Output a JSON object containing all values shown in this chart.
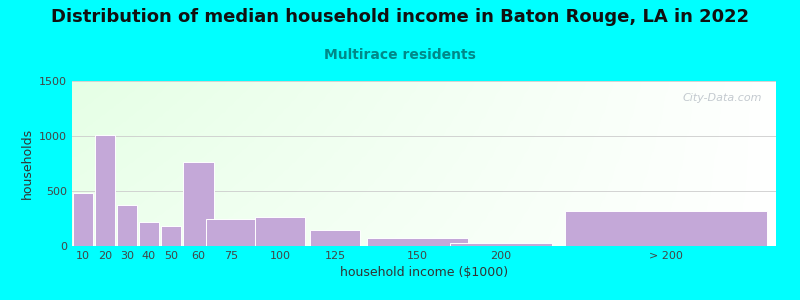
{
  "title": "Distribution of median household income in Baton Rouge, LA in 2022",
  "subtitle": "Multirace residents",
  "xlabel": "household income ($1000)",
  "ylabel": "households",
  "background_outer": "#00FFFF",
  "bar_color": "#C4A8D8",
  "bar_edge_color": "#FFFFFF",
  "ylim": [
    0,
    1500
  ],
  "yticks": [
    0,
    500,
    1000,
    1500
  ],
  "categories": [
    "10",
    "20",
    "30",
    "40",
    "50",
    "60",
    "75",
    "100",
    "125",
    "150",
    "200",
    "> 200"
  ],
  "values": [
    480,
    1005,
    370,
    215,
    185,
    765,
    250,
    265,
    150,
    75,
    30,
    320
  ],
  "widths": [
    10,
    10,
    10,
    10,
    10,
    15,
    25,
    25,
    25,
    50,
    50,
    100
  ],
  "lefts": [
    5,
    15,
    25,
    35,
    45,
    55,
    65,
    87,
    112,
    137,
    175,
    225
  ],
  "title_fontsize": 13,
  "subtitle_fontsize": 10,
  "label_fontsize": 8,
  "watermark": "City-Data.com"
}
